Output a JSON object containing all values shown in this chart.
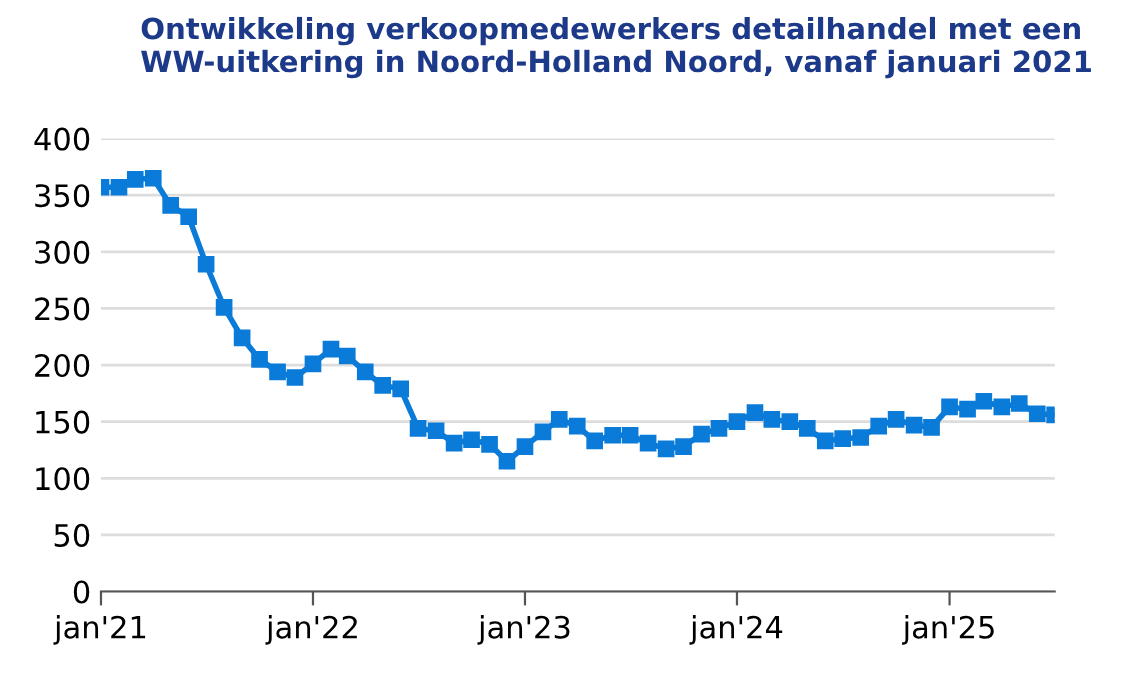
{
  "chart_data": {
    "type": "line",
    "title": "Ontwikkeling verkoopmedewerkers detailhandel met een WW-uitkering in Noord-Holland Noord, vanaf januari 2021",
    "x": [
      "2021-01",
      "2021-02",
      "2021-03",
      "2021-04",
      "2021-05",
      "2021-06",
      "2021-07",
      "2021-08",
      "2021-09",
      "2021-10",
      "2021-11",
      "2021-12",
      "2022-01",
      "2022-02",
      "2022-03",
      "2022-04",
      "2022-05",
      "2022-06",
      "2022-07",
      "2022-08",
      "2022-09",
      "2022-10",
      "2022-11",
      "2022-12",
      "2023-01",
      "2023-02",
      "2023-03",
      "2023-04",
      "2023-05",
      "2023-06",
      "2023-07",
      "2023-08",
      "2023-09",
      "2023-10",
      "2023-11",
      "2023-12",
      "2024-01",
      "2024-02",
      "2024-03",
      "2024-04",
      "2024-05",
      "2024-06",
      "2024-07",
      "2024-08",
      "2024-09",
      "2024-10",
      "2024-11",
      "2024-12",
      "2025-01",
      "2025-02",
      "2025-03",
      "2025-04",
      "2025-05",
      "2025-06",
      "2025-07"
    ],
    "series": [
      {
        "color": "#0a7bd8",
        "values": [
          357,
          357,
          364,
          365,
          341,
          331,
          289,
          251,
          224,
          205,
          194,
          189,
          201,
          214,
          208,
          194,
          182,
          179,
          144,
          142,
          131,
          134,
          130,
          115,
          128,
          141,
          152,
          146,
          133,
          138,
          138,
          131,
          126,
          128,
          139,
          144,
          150,
          158,
          152,
          150,
          144,
          133,
          135,
          136,
          146,
          152,
          147,
          145,
          163,
          161,
          168,
          163,
          166,
          157,
          156
        ]
      }
    ],
    "xlim": [
      "2021-01",
      "2025-07"
    ],
    "xticks": [
      {
        "value": "2021-01",
        "label": "jan'21"
      },
      {
        "value": "2022-01",
        "label": "jan'22"
      },
      {
        "value": "2023-01",
        "label": "jan'23"
      },
      {
        "value": "2024-01",
        "label": "jan'24"
      },
      {
        "value": "2025-01",
        "label": "jan'25"
      }
    ],
    "ylim": [
      0,
      400
    ],
    "yticks": [
      0,
      50,
      100,
      150,
      200,
      250,
      300,
      350,
      400
    ],
    "grid": "y",
    "marker": "square",
    "line_style": "solid",
    "legend": false
  }
}
